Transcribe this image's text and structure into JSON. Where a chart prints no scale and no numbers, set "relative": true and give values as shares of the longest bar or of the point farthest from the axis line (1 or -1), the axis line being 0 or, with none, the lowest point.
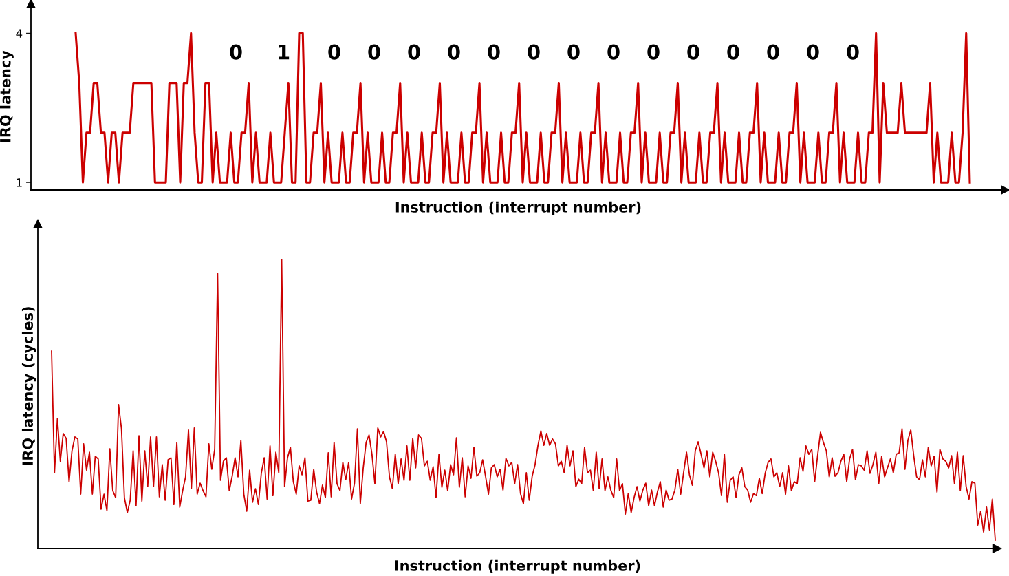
{
  "chart_data": [
    {
      "type": "line",
      "xlabel": "Instruction (interrupt number)",
      "ylabel": "IRQ latency",
      "ylim": [
        0.85,
        4.6
      ],
      "yticks": [
        1,
        4
      ],
      "tick_labels": "y",
      "marker": "none",
      "line_style": "solid",
      "categories": [
        null,
        null,
        null,
        null,
        null,
        null,
        null,
        null,
        null,
        null,
        null,
        null,
        null,
        null,
        null,
        null,
        null,
        null,
        null,
        null,
        null,
        null,
        null,
        null,
        null,
        null,
        null,
        null,
        null,
        null,
        null,
        null,
        null,
        null,
        null,
        null,
        null,
        null,
        null,
        null,
        null,
        null,
        null,
        null,
        null,
        null,
        null,
        null,
        null,
        null,
        null,
        null,
        null,
        null,
        null,
        null,
        null,
        null,
        null,
        null,
        null,
        null,
        null,
        null,
        null,
        null,
        null,
        null,
        null,
        null,
        null,
        null,
        null,
        null,
        null,
        null,
        null,
        null,
        null,
        null,
        null,
        null,
        null,
        null,
        null,
        null,
        null,
        null,
        null,
        null,
        null,
        null,
        null,
        null,
        null,
        null,
        null,
        null,
        null,
        null,
        null,
        null,
        null,
        null,
        null,
        null,
        null,
        null,
        null,
        null,
        null,
        null,
        null,
        null,
        null,
        null,
        null,
        null,
        null,
        null,
        null,
        null,
        null,
        null,
        null,
        null,
        null,
        null,
        null,
        null,
        null,
        null,
        null,
        null,
        null,
        null,
        null,
        null,
        null,
        null,
        null,
        null,
        null,
        null,
        null,
        null,
        null,
        null,
        null,
        null,
        null,
        null,
        null,
        null,
        null,
        null,
        null,
        null,
        null,
        null,
        null,
        null,
        null,
        null,
        null,
        null,
        null,
        null,
        null,
        null,
        null,
        null,
        null,
        null,
        null,
        null,
        null,
        null,
        null,
        null,
        null,
        null,
        null,
        null,
        null,
        null,
        null,
        null,
        null,
        null,
        null,
        null,
        null,
        null,
        null,
        null,
        null,
        null,
        null,
        null,
        null,
        null,
        null,
        null,
        null,
        null,
        null,
        null,
        null,
        null,
        null,
        null,
        null,
        null,
        null,
        null,
        null,
        null,
        null,
        null,
        null,
        null,
        null,
        null,
        null,
        null,
        null,
        null,
        null,
        null,
        null,
        null,
        null,
        null,
        null,
        null,
        null,
        null,
        null,
        null,
        null,
        null,
        null,
        null,
        null,
        null,
        null,
        null,
        null
      ],
      "series": [
        {
          "color": "#cc0000",
          "values": [
            4,
            3,
            1,
            2,
            2,
            3,
            3,
            2,
            2,
            1,
            2,
            2,
            1,
            2,
            2,
            2,
            3,
            3,
            3,
            3,
            3,
            3,
            1,
            1,
            1,
            1,
            3,
            3,
            3,
            1,
            3,
            3,
            4,
            2,
            1,
            1,
            3,
            3,
            1,
            2,
            1,
            1,
            1,
            2,
            1,
            1,
            2,
            2,
            3,
            1,
            2,
            1,
            1,
            1,
            2,
            1,
            1,
            1,
            2,
            3,
            1,
            1,
            4,
            4,
            1,
            1,
            2,
            2,
            3,
            1,
            2,
            1,
            1,
            1,
            2,
            1,
            1,
            2,
            2,
            3,
            1,
            2,
            1,
            1,
            1,
            2,
            1,
            1,
            2,
            2,
            3,
            1,
            2,
            1,
            1,
            1,
            2,
            1,
            1,
            2,
            2,
            3,
            1,
            2,
            1,
            1,
            1,
            2,
            1,
            1,
            2,
            2,
            3,
            1,
            2,
            1,
            1,
            1,
            2,
            1,
            1,
            2,
            2,
            3,
            1,
            2,
            1,
            1,
            1,
            2,
            1,
            1,
            2,
            2,
            3,
            1,
            2,
            1,
            1,
            1,
            2,
            1,
            1,
            2,
            2,
            3,
            1,
            2,
            1,
            1,
            1,
            2,
            1,
            1,
            2,
            2,
            3,
            1,
            2,
            1,
            1,
            1,
            2,
            1,
            1,
            2,
            2,
            3,
            1,
            2,
            1,
            1,
            1,
            2,
            1,
            1,
            2,
            2,
            3,
            1,
            2,
            1,
            1,
            1,
            2,
            1,
            1,
            2,
            2,
            3,
            1,
            2,
            1,
            1,
            1,
            2,
            1,
            1,
            2,
            2,
            3,
            1,
            2,
            1,
            1,
            1,
            2,
            1,
            1,
            2,
            2,
            3,
            1,
            2,
            1,
            1,
            1,
            2,
            1,
            1,
            2,
            2,
            4,
            1,
            3,
            2,
            2,
            2,
            2,
            3,
            2,
            2,
            2,
            2,
            2,
            2,
            2,
            3,
            1,
            2,
            1,
            1,
            1,
            2,
            1,
            1,
            2,
            4,
            1
          ]
        }
      ],
      "annotations": [
        "0",
        "1",
        "0",
        "0",
        "0",
        "0",
        "0",
        "0",
        "0",
        "0",
        "0",
        "0",
        "0",
        "0",
        "0",
        "0"
      ]
    },
    {
      "type": "line",
      "xlabel": "Instruction (interrupt number)",
      "ylabel": "IRQ latency (cycles)",
      "relative": true,
      "tick_labels": false,
      "marker": "none",
      "line_style": "solid",
      "categories": [
        null,
        null,
        null,
        null,
        null,
        null,
        null,
        null,
        null,
        null,
        null,
        null,
        null,
        null,
        null,
        null,
        null,
        null,
        null,
        null,
        null,
        null,
        null,
        null,
        null,
        null,
        null,
        null,
        null,
        null,
        null,
        null,
        null,
        null,
        null,
        null,
        null,
        null,
        null,
        null,
        null,
        null,
        null,
        null,
        null,
        null,
        null,
        null,
        null,
        null,
        null,
        null,
        null,
        null,
        null,
        null,
        null,
        null,
        null,
        null,
        null,
        null,
        null,
        null,
        null,
        null,
        null,
        null,
        null,
        null,
        null,
        null,
        null,
        null,
        null,
        null,
        null,
        null,
        null,
        null,
        null,
        null,
        null,
        null,
        null,
        null,
        null,
        null,
        null,
        null,
        null,
        null,
        null,
        null,
        null,
        null,
        null,
        null,
        null,
        null,
        null,
        null,
        null,
        null,
        null,
        null,
        null,
        null,
        null,
        null,
        null,
        null,
        null,
        null,
        null,
        null,
        null,
        null,
        null,
        null,
        null,
        null,
        null,
        null,
        null,
        null,
        null,
        null,
        null,
        null,
        null,
        null,
        null,
        null,
        null,
        null,
        null,
        null,
        null,
        null,
        null,
        null,
        null,
        null,
        null,
        null,
        null,
        null,
        null,
        null,
        null,
        null,
        null,
        null,
        null,
        null,
        null,
        null,
        null,
        null,
        null,
        null,
        null,
        null,
        null,
        null,
        null,
        null,
        null,
        null,
        null,
        null,
        null,
        null,
        null,
        null,
        null,
        null,
        null,
        null,
        null,
        null,
        null,
        null,
        null,
        null,
        null,
        null,
        null,
        null,
        null,
        null,
        null,
        null,
        null,
        null,
        null,
        null,
        null,
        null,
        null,
        null,
        null,
        null,
        null,
        null,
        null,
        null,
        null,
        null,
        null,
        null,
        null,
        null,
        null,
        null,
        null,
        null,
        null,
        null,
        null,
        null,
        null,
        null,
        null,
        null,
        null,
        null,
        null,
        null,
        null,
        null,
        null,
        null,
        null,
        null,
        null,
        null,
        null,
        null,
        null,
        null,
        null,
        null,
        null,
        null,
        null,
        null,
        null,
        null,
        null,
        null,
        null,
        null,
        null,
        null,
        null,
        null,
        null,
        null,
        null,
        null,
        null,
        null,
        null,
        null,
        null,
        null,
        null,
        null,
        null,
        null,
        null,
        null,
        null,
        null,
        null,
        null,
        null,
        null,
        null,
        null,
        null,
        null,
        null,
        null,
        null,
        null,
        null,
        null,
        null,
        null,
        null,
        null,
        null,
        null,
        null,
        null,
        null,
        null,
        null,
        null,
        null,
        null,
        null,
        null,
        null,
        null,
        null,
        null,
        null,
        null,
        null,
        null,
        null,
        null,
        null,
        null,
        null,
        null,
        null,
        null,
        null,
        null,
        null
      ],
      "series": [
        {
          "color": "#cc0000",
          "values": [
            0.683,
            0.262,
            0.45,
            0.302,
            0.398,
            0.381,
            0.231,
            0.338,
            0.386,
            0.379,
            0.188,
            0.362,
            0.271,
            0.333,
            0.188,
            0.319,
            0.31,
            0.136,
            0.188,
            0.131,
            0.345,
            0.2,
            0.176,
            0.498,
            0.414,
            0.176,
            0.124,
            0.167,
            0.338,
            0.148,
            0.39,
            0.164,
            0.338,
            0.214,
            0.386,
            0.214,
            0.386,
            0.179,
            0.29,
            0.167,
            0.307,
            0.314,
            0.152,
            0.367,
            0.143,
            0.2,
            0.248,
            0.41,
            0.207,
            0.417,
            0.188,
            0.226,
            0.2,
            0.179,
            0.362,
            0.274,
            0.343,
            0.952,
            0.236,
            0.302,
            0.314,
            0.2,
            0.25,
            0.314,
            0.248,
            0.374,
            0.188,
            0.129,
            0.271,
            0.16,
            0.207,
            0.152,
            0.26,
            0.314,
            0.171,
            0.355,
            0.183,
            0.333,
            0.262,
            1.0,
            0.214,
            0.314,
            0.35,
            0.231,
            0.188,
            0.286,
            0.255,
            0.314,
            0.164,
            0.167,
            0.274,
            0.195,
            0.155,
            0.219,
            0.176,
            0.331,
            0.179,
            0.367,
            0.224,
            0.2,
            0.298,
            0.238,
            0.298,
            0.171,
            0.226,
            0.414,
            0.155,
            0.279,
            0.367,
            0.393,
            0.326,
            0.224,
            0.417,
            0.386,
            0.405,
            0.369,
            0.248,
            0.207,
            0.326,
            0.224,
            0.31,
            0.236,
            0.355,
            0.236,
            0.381,
            0.279,
            0.393,
            0.381,
            0.286,
            0.302,
            0.236,
            0.283,
            0.176,
            0.326,
            0.212,
            0.271,
            0.2,
            0.29,
            0.255,
            0.383,
            0.212,
            0.314,
            0.179,
            0.286,
            0.243,
            0.35,
            0.25,
            0.262,
            0.307,
            0.25,
            0.188,
            0.279,
            0.29,
            0.248,
            0.274,
            0.202,
            0.312,
            0.286,
            0.298,
            0.224,
            0.29,
            0.19,
            0.155,
            0.262,
            0.167,
            0.25,
            0.29,
            0.357,
            0.407,
            0.357,
            0.398,
            0.357,
            0.379,
            0.362,
            0.286,
            0.302,
            0.262,
            0.357,
            0.286,
            0.338,
            0.214,
            0.24,
            0.224,
            0.35,
            0.262,
            0.271,
            0.2,
            0.333,
            0.207,
            0.31,
            0.2,
            0.248,
            0.202,
            0.176,
            0.31,
            0.2,
            0.224,
            0.119,
            0.19,
            0.124,
            0.176,
            0.214,
            0.164,
            0.202,
            0.226,
            0.148,
            0.202,
            0.148,
            0.195,
            0.231,
            0.143,
            0.202,
            0.167,
            0.171,
            0.202,
            0.274,
            0.188,
            0.262,
            0.333,
            0.255,
            0.219,
            0.338,
            0.369,
            0.326,
            0.279,
            0.338,
            0.248,
            0.333,
            0.302,
            0.262,
            0.183,
            0.326,
            0.16,
            0.236,
            0.248,
            0.176,
            0.255,
            0.279,
            0.214,
            0.202,
            0.16,
            0.19,
            0.183,
            0.243,
            0.19,
            0.26,
            0.298,
            0.31,
            0.248,
            0.262,
            0.214,
            0.262,
            0.188,
            0.286,
            0.2,
            0.231,
            0.224,
            0.314,
            0.267,
            0.355,
            0.326,
            0.343,
            0.231,
            0.321,
            0.402,
            0.367,
            0.338,
            0.248,
            0.314,
            0.25,
            0.262,
            0.302,
            0.326,
            0.231,
            0.31,
            0.343,
            0.238,
            0.29,
            0.286,
            0.271,
            0.338,
            0.26,
            0.29,
            0.333,
            0.224,
            0.319,
            0.248,
            0.279,
            0.31,
            0.262,
            0.326,
            0.331,
            0.414,
            0.274,
            0.374,
            0.41,
            0.321,
            0.248,
            0.238,
            0.307,
            0.248,
            0.35,
            0.286,
            0.319,
            0.195,
            0.343,
            0.31,
            0.302,
            0.279,
            0.321,
            0.224,
            0.333,
            0.2,
            0.321,
            0.214,
            0.171,
            0.231,
            0.226,
            0.081,
            0.129,
            0.057,
            0.143,
            0.064,
            0.171,
            0.029
          ]
        }
      ]
    }
  ]
}
